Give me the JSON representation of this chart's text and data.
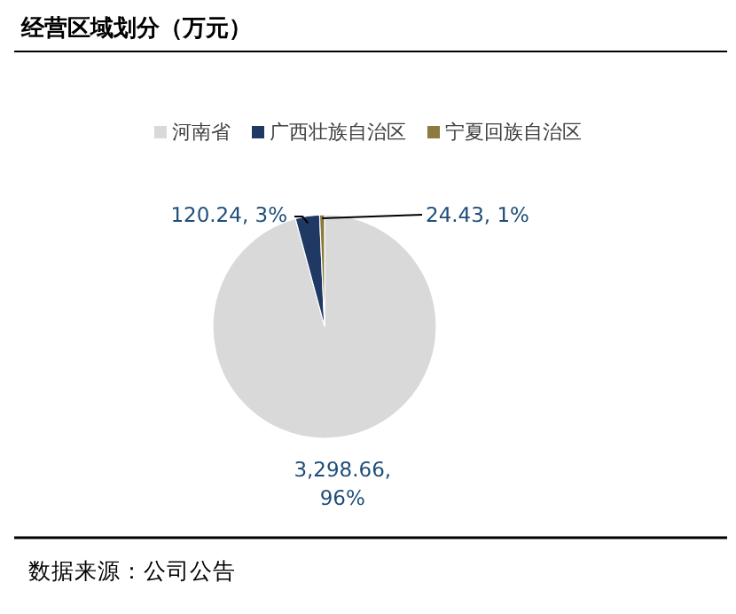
{
  "chart_data": {
    "type": "pie",
    "title": "经营区域划分（万元）",
    "categories": [
      "河南省",
      "广西壮族自治区",
      "宁夏回族自治区"
    ],
    "values": [
      3298.66,
      120.24,
      24.43
    ],
    "colors": [
      "#d9d9d9",
      "#1f3864",
      "#8c7a3e"
    ],
    "value_labels": [
      "3,298.66, 96%",
      "120.24, 3%",
      "24.43, 1%"
    ],
    "legend": "top",
    "annotations": [
      "数据来源：公司公告"
    ]
  }
}
